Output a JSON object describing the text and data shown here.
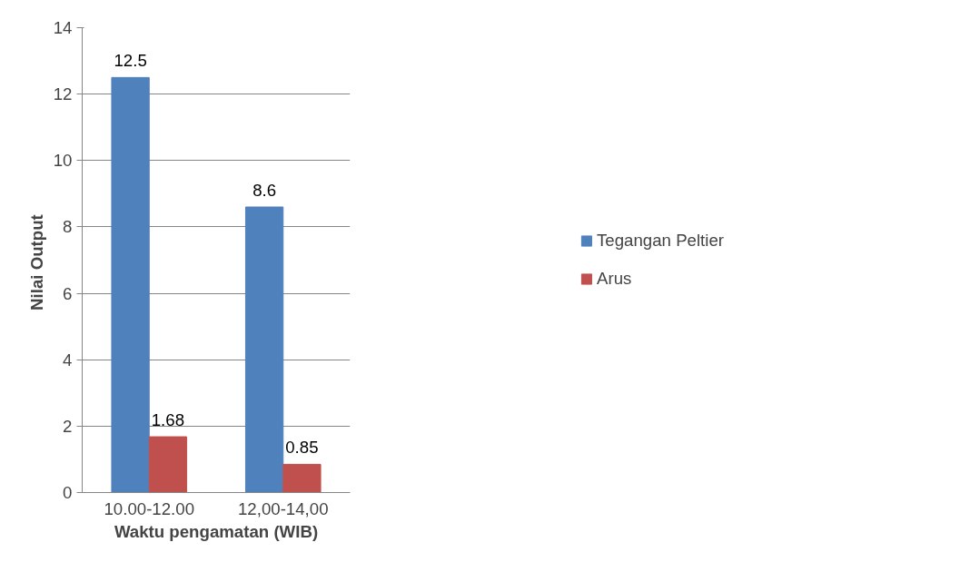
{
  "chart_data": {
    "type": "bar",
    "xlabel": "Waktu pengamatan (WIB)",
    "ylabel": "Nilai  Output",
    "categories": [
      "10.00-12.00",
      "12,00-14,00"
    ],
    "series": [
      {
        "name": "Tegangan Peltier",
        "color": "#4f81bd",
        "values": [
          12.5,
          8.6
        ]
      },
      {
        "name": "Arus",
        "color": "#c0504d",
        "values": [
          1.68,
          0.85
        ]
      }
    ],
    "ylim": [
      0,
      14
    ],
    "yticks": [
      0,
      2,
      4,
      6,
      8,
      10,
      12,
      14
    ],
    "grid": "y",
    "legend": "right",
    "data_labels": true
  }
}
